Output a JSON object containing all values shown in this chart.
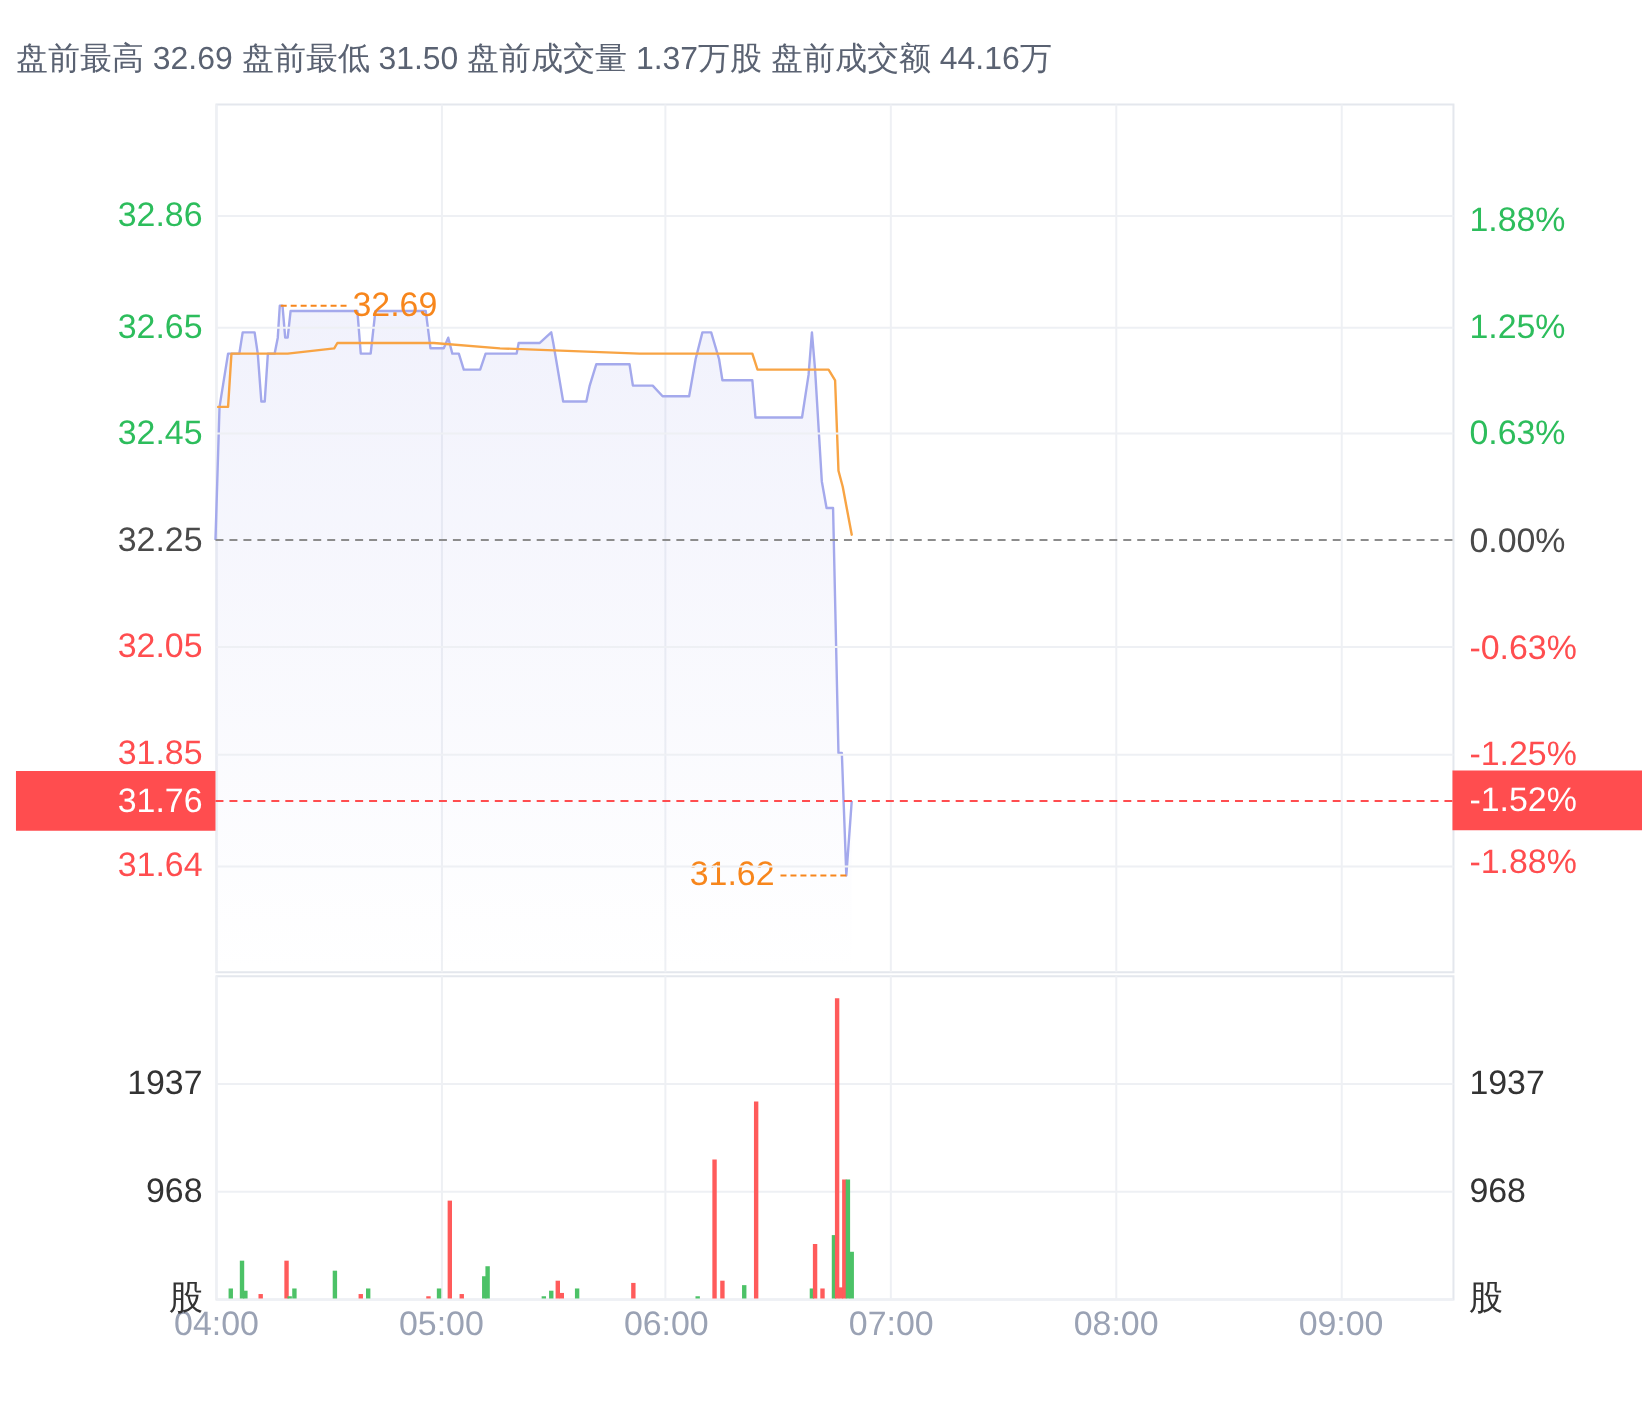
{
  "chart_data": [
    {
      "type": "area",
      "title": "盘前最高 32.69 盘前最低 31.50 盘前成交量 1.37万股 盘前成交额 44.16万",
      "series": [
        {
          "type": "area",
          "color": "#a4a9ec",
          "x": [
            4.0,
            4.018,
            4.056,
            4.106,
            4.121,
            4.174,
            4.188,
            4.204,
            4.219,
            4.233,
            4.263,
            4.277,
            4.286,
            4.298,
            4.31,
            4.321,
            4.334,
            4.631,
            4.646,
            4.69,
            4.711,
            4.935,
            4.956,
            5.015,
            5.035,
            5.053,
            5.082,
            5.104,
            5.177,
            5.201,
            5.339,
            5.348,
            5.442,
            5.493,
            5.502,
            5.546,
            5.649,
            5.664,
            5.693,
            5.841,
            5.856,
            5.944,
            5.988,
            6.106,
            6.135,
            6.165,
            6.204,
            6.239,
            6.254,
            6.387,
            6.401,
            6.608,
            6.637,
            6.652,
            6.666,
            6.696,
            6.717,
            6.746,
            6.77,
            6.785,
            6.805,
            6.829
          ],
          "values": [
            32.25,
            32.5,
            32.6,
            32.6,
            32.64,
            32.64,
            32.6,
            32.51,
            32.51,
            32.6,
            32.6,
            32.63,
            32.69,
            32.69,
            32.63,
            32.63,
            32.68,
            32.68,
            32.6,
            32.6,
            32.68,
            32.68,
            32.61,
            32.61,
            32.63,
            32.6,
            32.6,
            32.57,
            32.57,
            32.6,
            32.6,
            32.62,
            32.62,
            32.64,
            32.62,
            32.51,
            32.51,
            32.54,
            32.58,
            32.58,
            32.54,
            32.54,
            32.52,
            32.52,
            32.59,
            32.64,
            32.64,
            32.59,
            32.55,
            32.55,
            32.48,
            32.48,
            32.56,
            32.64,
            32.57,
            32.36,
            32.31,
            32.31,
            31.85,
            31.85,
            31.62,
            31.76
          ]
        },
        {
          "type": "line",
          "color": "#f8a444",
          "x": [
            4.012,
            4.056,
            4.071,
            4.321,
            4.528,
            4.542,
            4.971,
            5.265,
            5.885,
            6.387,
            6.41,
            6.726,
            6.755,
            6.77,
            6.789,
            6.829
          ],
          "values": [
            32.5,
            32.5,
            32.6,
            32.6,
            32.61,
            32.62,
            32.62,
            32.61,
            32.6,
            32.6,
            32.57,
            32.57,
            32.55,
            32.38,
            32.35,
            32.26
          ]
        }
      ],
      "annotations": [
        {
          "text": "32.69",
          "x": 4.29,
          "y": 32.69
        },
        {
          "text": "31.62",
          "x": 6.805,
          "y": 31.62
        }
      ],
      "ref_lines": [
        {
          "axis": "y",
          "value": 32.25,
          "color": "#8c8c8c",
          "line_style": "dashed"
        },
        {
          "axis": "y",
          "value": 31.76,
          "color": "#ff4d4f",
          "line_style": "dashed"
        }
      ],
      "xlim": [
        4,
        9.5
      ],
      "xticks": [
        4,
        5,
        6,
        7,
        8,
        9
      ],
      "ylim": [
        31.44,
        33.07
      ],
      "yticks": [
        31.64,
        31.76,
        31.85,
        32.05,
        32.25,
        32.45,
        32.65,
        32.86
      ],
      "y2lim": [
        -2.52,
        2.56
      ],
      "y2ticks": [
        {
          "value": -1.88,
          "label": "-1.88%"
        },
        {
          "value": -1.52,
          "label": "-1.52%"
        },
        {
          "value": -1.25,
          "label": "-1.25%"
        },
        {
          "value": -0.63,
          "label": "-0.63%"
        },
        {
          "value": 0,
          "label": "0.00%"
        },
        {
          "value": 0.63,
          "label": "0.63%"
        },
        {
          "value": 1.25,
          "label": "1.25%"
        },
        {
          "value": 1.88,
          "label": "1.88%"
        }
      ],
      "tick_labels": "y",
      "grid": true
    },
    {
      "type": "bar",
      "x": [
        4.068,
        4.118,
        4.133,
        4.201,
        4.316,
        4.33,
        4.351,
        4.531,
        4.646,
        4.679,
        4.947,
        4.994,
        5.042,
        5.095,
        5.195,
        5.21,
        5.46,
        5.493,
        5.522,
        5.54,
        5.608,
        5.858,
        6.144,
        6.219,
        6.254,
        6.351,
        6.404,
        6.652,
        6.666,
        6.699,
        6.75,
        6.764,
        6.781,
        6.796,
        6.812,
        6.829
      ],
      "values": [
        90,
        340,
        70,
        40,
        340,
        20,
        90,
        250,
        40,
        90,
        20,
        90,
        880,
        40,
        200,
        290,
        20,
        70,
        160,
        50,
        90,
        140,
        20,
        1250,
        160,
        120,
        1770,
        90,
        490,
        90,
        570,
        2700,
        100,
        1070,
        1070,
        420
      ],
      "colors": [
        "#4cc267",
        "#4cc267",
        "#4cc267",
        "#ff5b5b",
        "#ff5b5b",
        "#4cc267",
        "#4cc267",
        "#4cc267",
        "#ff5b5b",
        "#4cc267",
        "#ff5b5b",
        "#4cc267",
        "#ff5b5b",
        "#ff5b5b",
        "#4cc267",
        "#4cc267",
        "#4cc267",
        "#4cc267",
        "#ff5b5b",
        "#ff5b5b",
        "#4cc267",
        "#ff5b5b",
        "#4cc267",
        "#ff5b5b",
        "#ff5b5b",
        "#4cc267",
        "#ff5b5b",
        "#4cc267",
        "#ff5b5b",
        "#ff5b5b",
        "#4cc267",
        "#ff5b5b",
        "#ff5b5b",
        "#ff5b5b",
        "#4cc267",
        "#4cc267"
      ],
      "xlim": [
        4,
        9.5
      ],
      "xticks": [
        {
          "value": 4,
          "label": "04:00"
        },
        {
          "value": 5,
          "label": "05:00"
        },
        {
          "value": 6,
          "label": "06:00"
        },
        {
          "value": 7,
          "label": "07:00"
        },
        {
          "value": 8,
          "label": "08:00"
        },
        {
          "value": 9,
          "label": "09:00"
        }
      ],
      "ylim": [
        0,
        2906
      ],
      "yticks": [
        {
          "value": 0,
          "label": "股"
        },
        968,
        1937
      ],
      "y2lim": [
        0,
        2906
      ],
      "y2ticks": [
        {
          "value": 0,
          "label": "股"
        },
        968,
        1937
      ],
      "grid": true
    }
  ]
}
